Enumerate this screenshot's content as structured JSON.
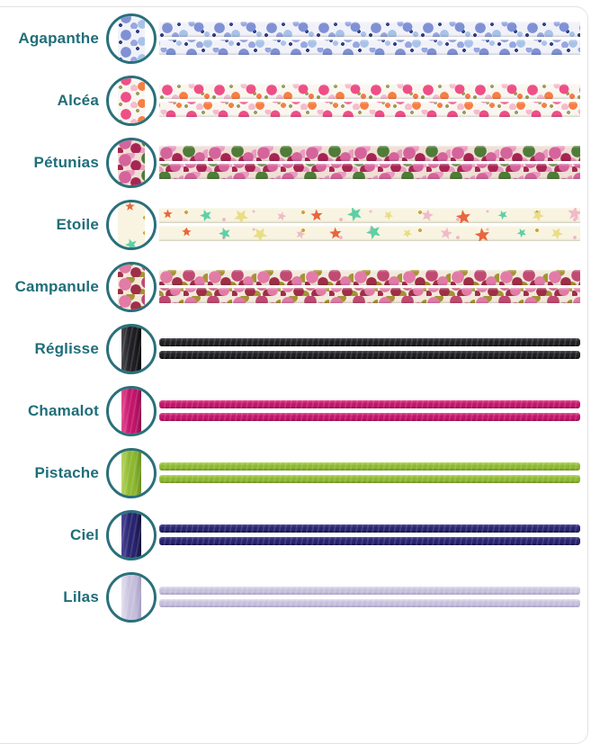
{
  "theme": {
    "label": "#1f6e79",
    "ring": "#2a707b",
    "border": "#e3e3e3",
    "background": "#ffffff"
  },
  "rows": [
    {
      "label": "Agapanthe",
      "type": "fabric",
      "colors": {
        "bg": "#f1f2f9",
        "a": "#7f91d4",
        "b": "#a9c3e8",
        "c": "#98a7e0",
        "d": "#2f4186"
      }
    },
    {
      "label": "Alcéa",
      "type": "fabric",
      "colors": {
        "bg": "#f9f6f0",
        "a": "#ee4f86",
        "b": "#f67f45",
        "c": "#f4bccd",
        "d": "#9a9e5a"
      }
    },
    {
      "label": "Pétunias",
      "type": "fabric-dense",
      "colors": {
        "bg": "#efdfd4",
        "a": "#d5649c",
        "b": "#a82553",
        "c": "#e99cc0",
        "d": "#4f7c38"
      }
    },
    {
      "label": "Etoile",
      "type": "stars",
      "colors": {
        "bg": "#f8f4e1",
        "a": "#e9663e",
        "b": "#5ecfa7",
        "c": "#e9dd86",
        "d": "#f0bac9",
        "e": "#cfa43b"
      }
    },
    {
      "label": "Campanule",
      "type": "fabric-dense",
      "colors": {
        "bg": "#f2e9dc",
        "a": "#e27ba6",
        "b": "#9e2f47",
        "c": "#a59334",
        "d": "#c14a72"
      }
    },
    {
      "label": "Réglisse",
      "type": "cord",
      "colors": {
        "base": "#202024",
        "light": "#4a4a52",
        "dark": "#0a0a0c"
      }
    },
    {
      "label": "Chamalot",
      "type": "cord",
      "colors": {
        "base": "#c3156b",
        "light": "#e54a92",
        "dark": "#8f0e4f"
      }
    },
    {
      "label": "Pistache",
      "type": "cord",
      "colors": {
        "base": "#8db831",
        "light": "#b5d55e",
        "dark": "#688f1f"
      }
    },
    {
      "label": "Ciel",
      "type": "cord",
      "colors": {
        "base": "#282470",
        "light": "#4c4899",
        "dark": "#15123f"
      }
    },
    {
      "label": "Lilas",
      "type": "cord",
      "colors": {
        "base": "#c7c0dc",
        "light": "#e3dff0",
        "dark": "#a49cc2"
      }
    }
  ]
}
